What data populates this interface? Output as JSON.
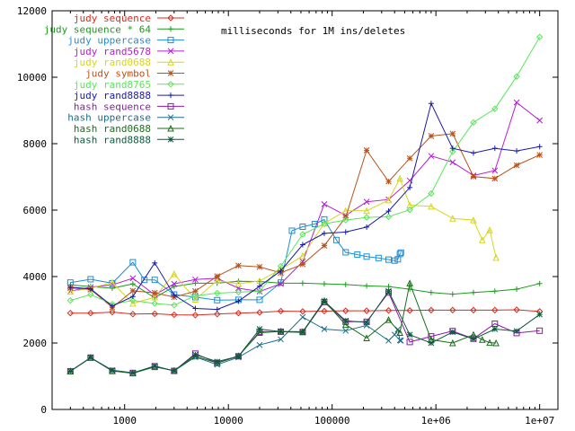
{
  "chart_data": {
    "type": "line",
    "title": "milliseconds for 1M ins/deletes",
    "xlabel": "",
    "ylabel": "",
    "xscale": "log",
    "xlim": [
      200,
      15000000
    ],
    "ylim": [
      0,
      12000
    ],
    "grid": false,
    "legend_position": "top-left",
    "x_ticks": [
      {
        "value": 1000,
        "label": "1000"
      },
      {
        "value": 10000,
        "label": "10000"
      },
      {
        "value": 100000,
        "label": "100000"
      },
      {
        "value": 1000000,
        "label": "1e+06"
      },
      {
        "value": 10000000,
        "label": "1e+07"
      }
    ],
    "y_ticks": [
      {
        "value": 0,
        "label": "0"
      },
      {
        "value": 2000,
        "label": "2000"
      },
      {
        "value": 4000,
        "label": "4000"
      },
      {
        "value": 6000,
        "label": "6000"
      },
      {
        "value": 8000,
        "label": "8000"
      },
      {
        "value": 10000,
        "label": "10000"
      },
      {
        "value": 12000,
        "label": "12000"
      }
    ],
    "series": [
      {
        "name": "judy sequence",
        "color": "#d62d20",
        "marker": "diamond",
        "x": [
          300,
          470,
          760,
          1200,
          1950,
          3000,
          4800,
          7800,
          12500,
          20000,
          32000,
          52000,
          84000,
          135000,
          215000,
          350000,
          560000,
          900000,
          1450000,
          2300000,
          3700000,
          6000000,
          10000000
        ],
        "y": [
          2900,
          2900,
          2930,
          2870,
          2880,
          2850,
          2840,
          2870,
          2900,
          2920,
          2960,
          2950,
          2960,
          2970,
          2970,
          2980,
          2980,
          2990,
          2990,
          2990,
          2990,
          3000,
          2950
        ]
      },
      {
        "name": "judy sequence * 64",
        "color": "#1a9c1a",
        "marker": "plus",
        "x": [
          300,
          470,
          760,
          1200,
          1950,
          3000,
          4800,
          7800,
          12500,
          20000,
          32000,
          52000,
          84000,
          135000,
          215000,
          350000,
          560000,
          900000,
          1450000,
          2300000,
          3700000,
          6000000,
          10000000
        ],
        "y": [
          3750,
          3700,
          3650,
          3780,
          3360,
          3700,
          3800,
          3800,
          3860,
          3850,
          3800,
          3800,
          3780,
          3760,
          3720,
          3700,
          3620,
          3520,
          3470,
          3520,
          3560,
          3620,
          3790
        ]
      },
      {
        "name": "judy uppercase",
        "color": "#1a8fd6",
        "marker": "square",
        "x": [
          300,
          470,
          760,
          1200,
          1550,
          1950,
          3000,
          4800,
          7800,
          12500,
          20000,
          32000,
          41000,
          52000,
          68000,
          84000,
          110000,
          135000,
          175000,
          215000,
          280000,
          350000,
          400000,
          430000,
          450000,
          460000
        ],
        "y": [
          3820,
          3920,
          3800,
          4430,
          3900,
          3900,
          3460,
          3380,
          3290,
          3300,
          3300,
          3820,
          5380,
          5500,
          5580,
          5720,
          5100,
          4730,
          4660,
          4600,
          4560,
          4510,
          4480,
          4520,
          4680,
          4720
        ]
      },
      {
        "name": "judy rand5678",
        "color": "#b51cd6",
        "marker": "cross",
        "x": [
          300,
          470,
          760,
          1200,
          1950,
          3000,
          4800,
          7800,
          12500,
          20000,
          32000,
          52000,
          84000,
          135000,
          215000,
          350000,
          560000,
          900000,
          1450000,
          2300000,
          3700000,
          6000000,
          10000000
        ],
        "y": [
          3560,
          3680,
          3750,
          3950,
          3450,
          3780,
          3910,
          3950,
          3650,
          3550,
          3780,
          4450,
          6180,
          5840,
          6250,
          6320,
          6890,
          7630,
          7440,
          7040,
          7190,
          9240,
          8700
        ]
      },
      {
        "name": "judy rand0688",
        "color": "#d6d61c",
        "marker": "triangle",
        "x": [
          300,
          470,
          760,
          1200,
          1950,
          3000,
          4800,
          7800,
          12500,
          20000,
          32000,
          52000,
          84000,
          135000,
          215000,
          350000,
          450000,
          560000,
          900000,
          1450000,
          2300000,
          2800000,
          3300000,
          3800000
        ],
        "y": [
          3550,
          3650,
          3820,
          3190,
          3380,
          4080,
          3310,
          3880,
          3780,
          3870,
          4220,
          4620,
          5600,
          5980,
          5980,
          6300,
          6950,
          6150,
          6110,
          5750,
          5700,
          5100,
          5400,
          4570
        ]
      },
      {
        "name": "judy symbol",
        "color": "#b8521a",
        "marker": "star",
        "x": [
          300,
          470,
          760,
          1200,
          1950,
          3000,
          4800,
          7800,
          12500,
          20000,
          32000,
          52000,
          84000,
          135000,
          215000,
          350000,
          560000,
          900000,
          1450000,
          2300000,
          3700000,
          6000000,
          10000000
        ],
        "y": [
          3660,
          3610,
          3070,
          3570,
          3510,
          3380,
          3560,
          4010,
          4330,
          4290,
          4110,
          4370,
          4930,
          5780,
          7800,
          6860,
          7560,
          8230,
          8300,
          7010,
          6950,
          7350,
          7660
        ]
      },
      {
        "name": "judy rand8765",
        "color": "#5ae65a",
        "marker": "diamond",
        "x": [
          300,
          470,
          760,
          1200,
          1950,
          3000,
          4800,
          7800,
          12500,
          20000,
          32000,
          52000,
          84000,
          135000,
          215000,
          350000,
          560000,
          900000,
          1450000,
          2300000,
          3700000,
          6000000,
          10000000
        ],
        "y": [
          3280,
          3460,
          3170,
          3280,
          3190,
          3140,
          3420,
          3500,
          3530,
          3560,
          4310,
          5270,
          5590,
          5700,
          5780,
          5800,
          6010,
          6500,
          7760,
          8640,
          9050,
          10020,
          11210
        ]
      },
      {
        "name": "judy rand8888",
        "color": "#1a1aa8",
        "marker": "plus",
        "x": [
          300,
          470,
          760,
          1200,
          1950,
          3000,
          4800,
          7800,
          12500,
          20000,
          32000,
          52000,
          84000,
          135000,
          215000,
          350000,
          560000,
          900000,
          1450000,
          2300000,
          3700000,
          6000000,
          10000000
        ],
        "y": [
          3680,
          3630,
          3110,
          3400,
          4410,
          3440,
          3040,
          3010,
          3260,
          3710,
          4170,
          4960,
          5300,
          5340,
          5490,
          5970,
          6680,
          9210,
          7860,
          7720,
          7860,
          7780,
          7910
        ]
      },
      {
        "name": "hash sequence",
        "color": "#8c1aa8",
        "marker": "square",
        "x": [
          300,
          470,
          760,
          1200,
          1950,
          3000,
          4800,
          7800,
          12500,
          20000,
          32000,
          52000,
          84000,
          135000,
          215000,
          350000,
          560000,
          900000,
          1450000,
          2300000,
          3700000,
          6000000,
          10000000
        ],
        "y": [
          1150,
          1560,
          1160,
          1100,
          1300,
          1160,
          1680,
          1400,
          1600,
          2340,
          2340,
          2330,
          3230,
          2640,
          2640,
          3520,
          2030,
          2200,
          2360,
          2130,
          2580,
          2300,
          2370
        ]
      },
      {
        "name": "hash uppercase",
        "color": "#1a6e8c",
        "marker": "cross",
        "x": [
          300,
          470,
          760,
          1200,
          1950,
          3000,
          4800,
          7800,
          12500,
          20000,
          32000,
          52000,
          84000,
          135000,
          215000,
          350000,
          400000,
          430000,
          450000,
          460000
        ],
        "y": [
          1150,
          1560,
          1180,
          1100,
          1310,
          1160,
          1580,
          1350,
          1570,
          1940,
          2110,
          2780,
          2420,
          2370,
          2530,
          2070,
          2250,
          2410,
          2080,
          2070
        ]
      },
      {
        "name": "hash rand0688",
        "color": "#1a6e1a",
        "marker": "triangle",
        "x": [
          300,
          470,
          760,
          1200,
          1950,
          3000,
          4800,
          7800,
          12500,
          20000,
          32000,
          52000,
          84000,
          135000,
          215000,
          350000,
          450000,
          560000,
          900000,
          1450000,
          2300000,
          2800000,
          3300000,
          3800000
        ],
        "y": [
          1150,
          1560,
          1160,
          1090,
          1280,
          1170,
          1600,
          1400,
          1610,
          2310,
          2350,
          2340,
          3270,
          2550,
          2150,
          2700,
          2310,
          3800,
          2100,
          2000,
          2250,
          2100,
          2010,
          2000
        ]
      },
      {
        "name": "hash rand8888",
        "color": "#0e5a3c",
        "marker": "star",
        "x": [
          300,
          470,
          760,
          1200,
          1950,
          3000,
          4800,
          7800,
          12500,
          20000,
          32000,
          52000,
          84000,
          135000,
          215000,
          350000,
          560000,
          900000,
          1450000,
          2300000,
          3700000,
          6000000,
          10000000
        ],
        "y": [
          1150,
          1560,
          1170,
          1100,
          1300,
          1160,
          1650,
          1440,
          1600,
          2420,
          2340,
          2320,
          3260,
          2670,
          2620,
          3560,
          2250,
          2000,
          2330,
          2120,
          2420,
          2360,
          2860
        ]
      }
    ]
  }
}
